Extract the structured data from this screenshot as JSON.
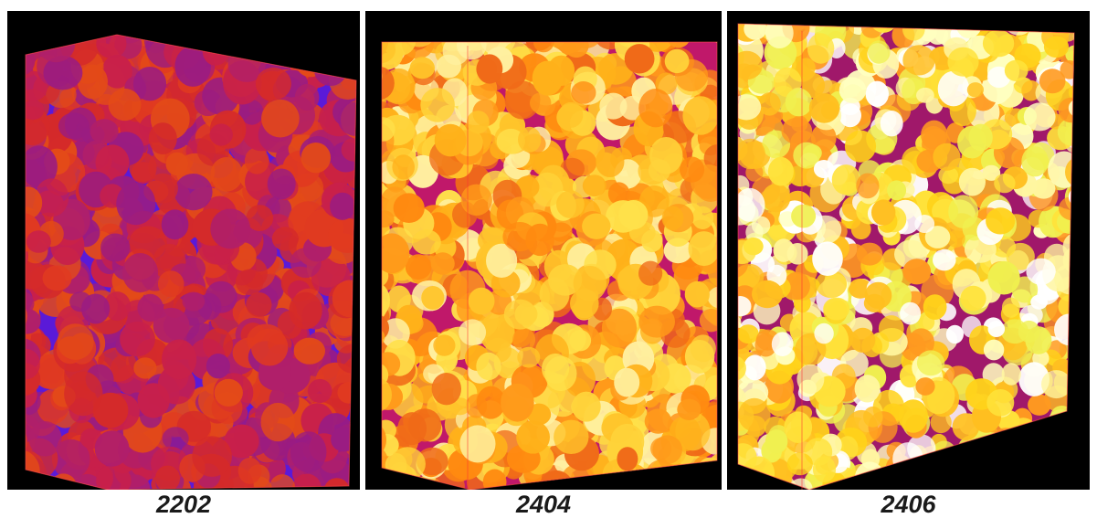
{
  "panels": [
    {
      "label": "2202",
      "palette": [
        "#d42a2a",
        "#e03a20",
        "#c8204a",
        "#b01f6a",
        "#e34a18",
        "#9a1c82"
      ],
      "matrix": "#5a1ad8"
    },
    {
      "label": "2404",
      "palette": [
        "#ff9a1a",
        "#ffb11a",
        "#ff8a10",
        "#ffc42a",
        "#f06a18",
        "#ffe04a",
        "#ffd33a",
        "#fff0a0"
      ],
      "matrix": "#c0186a"
    },
    {
      "label": "2406",
      "palette": [
        "#ffd21a",
        "#ffe23a",
        "#ffbf20",
        "#ff9a20",
        "#f0f050",
        "#ffffc0",
        "#fff6a0",
        "#ffffff"
      ],
      "matrix": "#a0186a"
    }
  ]
}
